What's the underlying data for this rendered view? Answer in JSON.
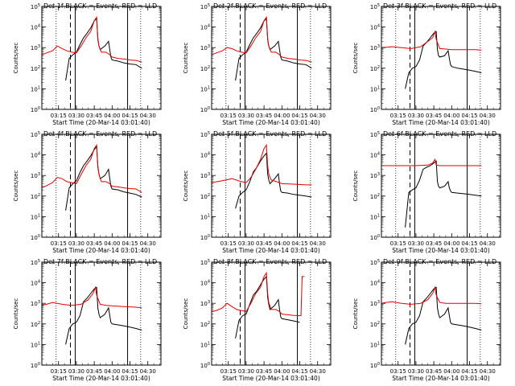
{
  "colors": {
    "events": "#000000",
    "lld": "#e00000",
    "axis": "#000000"
  },
  "common": {
    "ylabel": "Counts/sec",
    "xlabel": "Start Time (20-Mar-14 03:01:40)",
    "x_tick_labels": [
      "03:15",
      "03:30",
      "03:45",
      "04:00",
      "04:15",
      "04:30"
    ],
    "y_tick_labels": [
      "10^0",
      "10^1",
      "10^2",
      "10^3",
      "10^4",
      "10^5"
    ],
    "y_log_scale": true,
    "ylim": [
      1,
      100000
    ]
  },
  "chart_data": [
    {
      "type": "line",
      "title": "Det 1f BLACK = Events, RED = LLD",
      "series": [
        {
          "name": "Events",
          "x": [
            "03:21",
            "03:24",
            "03:27",
            "03:30",
            "03:33",
            "03:36",
            "03:39",
            "03:42",
            "03:45",
            "03:47",
            "03:48",
            "03:49",
            "03:50",
            "03:54",
            "03:57",
            "03:58",
            "03:59",
            "04:00",
            "04:05",
            "04:10",
            "04:15",
            "04:20",
            "04:25"
          ],
          "y": [
            25,
            300,
            450,
            600,
            1400,
            3000,
            5000,
            9000,
            20000,
            25000,
            2500,
            1200,
            800,
            1200,
            2000,
            800,
            350,
            250,
            220,
            180,
            160,
            150,
            100
          ]
        },
        {
          "name": "LLD",
          "x": [
            "03:01",
            "03:05",
            "03:10",
            "03:14",
            "03:18",
            "03:22",
            "03:26",
            "03:30",
            "03:34",
            "03:38",
            "03:42",
            "03:45",
            "03:47",
            "03:48",
            "03:49",
            "03:51",
            "03:55",
            "03:58",
            "04:00",
            "04:05",
            "04:10",
            "04:15",
            "04:20",
            "04:25"
          ],
          "y": [
            450,
            550,
            700,
            1200,
            900,
            700,
            600,
            550,
            1200,
            3000,
            6000,
            20000,
            30000,
            3000,
            1200,
            600,
            600,
            450,
            350,
            300,
            280,
            250,
            240,
            200
          ]
        }
      ],
      "vlines_solid": [
        "03:29",
        "04:13"
      ],
      "vlines_dashed": [
        "03:25"
      ],
      "vlines_dotted": [
        "03:13",
        "04:24"
      ]
    },
    {
      "type": "line",
      "title": "Det 2f BLACK = Events, RED = LLD",
      "series": [
        {
          "name": "Events",
          "x": [
            "03:21",
            "03:24",
            "03:27",
            "03:30",
            "03:33",
            "03:36",
            "03:39",
            "03:42",
            "03:45",
            "03:47",
            "03:48",
            "03:49",
            "03:50",
            "03:54",
            "03:57",
            "03:58",
            "03:59",
            "04:00",
            "04:05",
            "04:10",
            "04:15",
            "04:20",
            "04:25"
          ],
          "y": [
            25,
            300,
            450,
            600,
            1400,
            3000,
            5000,
            9000,
            20000,
            25000,
            2500,
            1200,
            800,
            1200,
            2000,
            800,
            350,
            250,
            220,
            180,
            160,
            150,
            100
          ]
        },
        {
          "name": "LLD",
          "x": [
            "03:01",
            "03:05",
            "03:10",
            "03:14",
            "03:18",
            "03:22",
            "03:26",
            "03:30",
            "03:34",
            "03:38",
            "03:42",
            "03:45",
            "03:47",
            "03:48",
            "03:49",
            "03:51",
            "03:55",
            "03:58",
            "04:00",
            "04:05",
            "04:10",
            "04:15",
            "04:20",
            "04:25"
          ],
          "y": [
            450,
            550,
            700,
            1000,
            900,
            700,
            600,
            550,
            1200,
            3000,
            6000,
            20000,
            30000,
            3000,
            1200,
            600,
            600,
            450,
            350,
            300,
            280,
            250,
            240,
            200
          ]
        }
      ],
      "vlines_solid": [
        "03:29",
        "04:13"
      ],
      "vlines_dashed": [
        "03:25"
      ],
      "vlines_dotted": [
        "03:13",
        "04:24"
      ]
    },
    {
      "type": "line",
      "title": "Det 3f BLACK = Events, RED = LLD",
      "series": [
        {
          "name": "Events",
          "x": [
            "03:21",
            "03:24",
            "03:27",
            "03:30",
            "03:33",
            "03:36",
            "03:39",
            "03:42",
            "03:45",
            "03:47",
            "03:48",
            "03:49",
            "03:50",
            "03:54",
            "03:57",
            "03:58",
            "03:59",
            "04:00",
            "04:05",
            "04:10",
            "04:15",
            "04:20",
            "04:25"
          ],
          "y": [
            10,
            60,
            100,
            120,
            250,
            1200,
            1800,
            3000,
            5000,
            6000,
            800,
            400,
            350,
            400,
            700,
            300,
            150,
            120,
            100,
            90,
            80,
            70,
            60
          ]
        },
        {
          "name": "LLD",
          "x": [
            "03:01",
            "03:10",
            "03:18",
            "03:26",
            "03:34",
            "03:40",
            "03:44",
            "03:46",
            "03:47",
            "03:50",
            "03:55",
            "04:00",
            "04:10",
            "04:20",
            "04:25"
          ],
          "y": [
            1000,
            1100,
            1000,
            900,
            1100,
            2000,
            3000,
            6000,
            2500,
            900,
            850,
            800,
            800,
            800,
            750
          ]
        }
      ],
      "vlines_solid": [
        "03:29",
        "04:13"
      ],
      "vlines_dashed": [
        "03:25"
      ],
      "vlines_dotted": [
        "03:13",
        "04:24"
      ]
    },
    {
      "type": "line",
      "title": "Det 4f BLACK = Events, RED = LLD",
      "series": [
        {
          "name": "Events",
          "x": [
            "03:21",
            "03:24",
            "03:27",
            "03:30",
            "03:33",
            "03:36",
            "03:39",
            "03:42",
            "03:45",
            "03:47",
            "03:48",
            "03:49",
            "03:50",
            "03:54",
            "03:57",
            "03:58",
            "03:59",
            "04:00",
            "04:05",
            "04:10",
            "04:15",
            "04:20",
            "04:25"
          ],
          "y": [
            20,
            250,
            400,
            550,
            1400,
            3000,
            5000,
            9000,
            18000,
            25000,
            2500,
            1200,
            700,
            1000,
            2000,
            700,
            300,
            220,
            200,
            160,
            140,
            120,
            90
          ]
        },
        {
          "name": "LLD",
          "x": [
            "03:01",
            "03:05",
            "03:10",
            "03:14",
            "03:18",
            "03:22",
            "03:26",
            "03:30",
            "03:34",
            "03:38",
            "03:42",
            "03:45",
            "03:47",
            "03:48",
            "03:49",
            "03:51",
            "03:55",
            "03:58",
            "04:00",
            "04:05",
            "04:10",
            "04:15",
            "04:20",
            "04:25"
          ],
          "y": [
            250,
            320,
            450,
            800,
            700,
            500,
            450,
            400,
            1100,
            3000,
            6000,
            20000,
            30000,
            3000,
            1100,
            500,
            500,
            400,
            300,
            280,
            250,
            230,
            220,
            150
          ]
        }
      ],
      "vlines_solid": [
        "03:29",
        "04:13"
      ],
      "vlines_dashed": [
        "03:25"
      ],
      "vlines_dotted": [
        "03:13",
        "04:24"
      ]
    },
    {
      "type": "line",
      "title": "Det 5f BLACK = Events, RED = LLD",
      "series": [
        {
          "name": "Events",
          "x": [
            "03:21",
            "03:24",
            "03:27",
            "03:30",
            "03:33",
            "03:36",
            "03:39",
            "03:42",
            "03:45",
            "03:47",
            "03:48",
            "03:49",
            "03:50",
            "03:54",
            "03:57",
            "03:58",
            "03:59",
            "04:00",
            "04:05",
            "04:10",
            "04:15",
            "04:20",
            "04:25"
          ],
          "y": [
            25,
            100,
            150,
            200,
            500,
            1500,
            2500,
            5000,
            9000,
            12000,
            1200,
            600,
            400,
            700,
            1200,
            400,
            180,
            150,
            140,
            120,
            110,
            100,
            90
          ]
        },
        {
          "name": "LLD",
          "x": [
            "03:01",
            "03:10",
            "03:18",
            "03:26",
            "03:30",
            "03:34",
            "03:38",
            "03:42",
            "03:45",
            "03:47",
            "03:48",
            "03:49",
            "03:51",
            "03:58",
            "04:00",
            "04:10",
            "04:20",
            "04:25"
          ],
          "y": [
            450,
            550,
            700,
            500,
            450,
            800,
            2000,
            6000,
            20000,
            30000,
            3000,
            1200,
            600,
            450,
            400,
            380,
            350,
            350
          ]
        }
      ],
      "vlines_solid": [
        "03:29",
        "04:13"
      ],
      "vlines_dashed": [
        "03:25"
      ],
      "vlines_dotted": [
        "03:13",
        "04:24"
      ]
    },
    {
      "type": "line",
      "title": "Det 6f BLACK = Events, RED = LLD",
      "series": [
        {
          "name": "Events",
          "x": [
            "03:21",
            "03:24",
            "03:27",
            "03:30",
            "03:33",
            "03:36",
            "03:39",
            "03:42",
            "03:45",
            "03:47",
            "03:48",
            "03:49",
            "03:50",
            "03:54",
            "03:57",
            "03:58",
            "03:59",
            "04:00",
            "04:05",
            "04:10",
            "04:15",
            "04:20",
            "04:25"
          ],
          "y": [
            3,
            150,
            200,
            250,
            600,
            2000,
            2500,
            3000,
            4000,
            5000,
            500,
            300,
            250,
            300,
            500,
            250,
            180,
            150,
            140,
            130,
            120,
            110,
            100
          ]
        },
        {
          "name": "LLD",
          "x": [
            "03:01",
            "03:10",
            "03:20",
            "03:30",
            "03:40",
            "03:44",
            "03:46",
            "03:47",
            "03:50",
            "04:00",
            "04:10",
            "04:20",
            "04:25"
          ],
          "y": [
            3000,
            3000,
            3000,
            3000,
            3200,
            4000,
            6000,
            3200,
            3000,
            3000,
            3000,
            3000,
            3000
          ]
        }
      ],
      "vlines_solid": [
        "03:29",
        "04:13"
      ],
      "vlines_dashed": [
        "03:25"
      ],
      "vlines_dotted": [
        "03:13",
        "04:24"
      ]
    },
    {
      "type": "line",
      "title": "Det 7f BLACK = Events, RED = LLD",
      "series": [
        {
          "name": "Events",
          "x": [
            "03:21",
            "03:24",
            "03:27",
            "03:30",
            "03:33",
            "03:36",
            "03:39",
            "03:42",
            "03:45",
            "03:47",
            "03:48",
            "03:49",
            "03:50",
            "03:54",
            "03:57",
            "03:58",
            "03:59",
            "04:00",
            "04:05",
            "04:10",
            "04:15",
            "04:20",
            "04:25"
          ],
          "y": [
            10,
            60,
            100,
            120,
            250,
            1200,
            1800,
            3000,
            5000,
            6000,
            600,
            300,
            200,
            300,
            600,
            250,
            120,
            100,
            90,
            80,
            70,
            60,
            50
          ]
        },
        {
          "name": "LLD",
          "x": [
            "03:01",
            "03:05",
            "03:10",
            "03:18",
            "03:26",
            "03:34",
            "03:40",
            "03:44",
            "03:46",
            "03:47",
            "03:50",
            "03:55",
            "04:00",
            "04:10",
            "04:20",
            "04:25"
          ],
          "y": [
            800,
            900,
            1100,
            900,
            800,
            900,
            1500,
            3000,
            6000,
            2500,
            900,
            800,
            750,
            700,
            650,
            600
          ]
        }
      ],
      "vlines_solid": [
        "03:29",
        "04:13"
      ],
      "vlines_dashed": [
        "03:25"
      ],
      "vlines_dotted": [
        "03:13",
        "04:24"
      ]
    },
    {
      "type": "line",
      "title": "Det 8f BLACK = Events, RED = LLD",
      "series": [
        {
          "name": "Events",
          "x": [
            "03:21",
            "03:24",
            "03:27",
            "03:30",
            "03:33",
            "03:36",
            "03:39",
            "03:42",
            "03:45",
            "03:47",
            "03:48",
            "03:49",
            "03:50",
            "03:54",
            "03:57",
            "03:58",
            "03:59",
            "04:00",
            "04:05",
            "04:10",
            "04:15"
          ],
          "y": [
            20,
            150,
            250,
            300,
            900,
            2500,
            4000,
            8000,
            15000,
            20000,
            2000,
            900,
            500,
            800,
            1500,
            500,
            220,
            180,
            160,
            140,
            120
          ]
        },
        {
          "name": "LLD",
          "x": [
            "03:01",
            "03:05",
            "03:10",
            "03:14",
            "03:18",
            "03:22",
            "03:26",
            "03:30",
            "03:34",
            "03:38",
            "03:42",
            "03:45",
            "03:47",
            "03:48",
            "03:49",
            "03:51",
            "03:55",
            "03:58",
            "04:00",
            "04:05",
            "04:10",
            "04:16",
            "04:17",
            "04:18",
            "04:19"
          ],
          "y": [
            400,
            450,
            600,
            1000,
            700,
            500,
            450,
            400,
            1000,
            3000,
            6000,
            20000,
            30000,
            3000,
            1100,
            500,
            500,
            400,
            300,
            280,
            260,
            250,
            20000,
            20000,
            20000
          ]
        }
      ],
      "vlines_solid": [
        "03:29",
        "04:13"
      ],
      "vlines_dashed": [
        "03:25"
      ],
      "vlines_dotted": [
        "03:13",
        "04:24"
      ]
    },
    {
      "type": "line",
      "title": "Det 9f BLACK = Events, RED = LLD",
      "series": [
        {
          "name": "Events",
          "x": [
            "03:21",
            "03:24",
            "03:27",
            "03:30",
            "03:33",
            "03:36",
            "03:39",
            "03:42",
            "03:45",
            "03:47",
            "03:48",
            "03:49",
            "03:50",
            "03:54",
            "03:57",
            "03:58",
            "03:59",
            "04:00",
            "04:05",
            "04:10",
            "04:15",
            "04:20",
            "04:25"
          ],
          "y": [
            10,
            60,
            100,
            120,
            250,
            1200,
            1800,
            3000,
            5000,
            6000,
            600,
            300,
            200,
            300,
            600,
            250,
            120,
            100,
            90,
            80,
            70,
            60,
            50
          ]
        },
        {
          "name": "LLD",
          "x": [
            "03:01",
            "03:05",
            "03:10",
            "03:18",
            "03:26",
            "03:34",
            "03:40",
            "03:44",
            "03:46",
            "03:47",
            "03:50",
            "03:55",
            "04:00",
            "04:10",
            "04:20",
            "04:25"
          ],
          "y": [
            1000,
            1100,
            1200,
            1000,
            900,
            1000,
            1500,
            3000,
            6000,
            2500,
            1100,
            1000,
            1000,
            1000,
            1000,
            950
          ]
        }
      ],
      "vlines_solid": [
        "03:29",
        "04:13"
      ],
      "vlines_dashed": [
        "03:25"
      ],
      "vlines_dotted": [
        "03:13",
        "04:24"
      ]
    }
  ]
}
